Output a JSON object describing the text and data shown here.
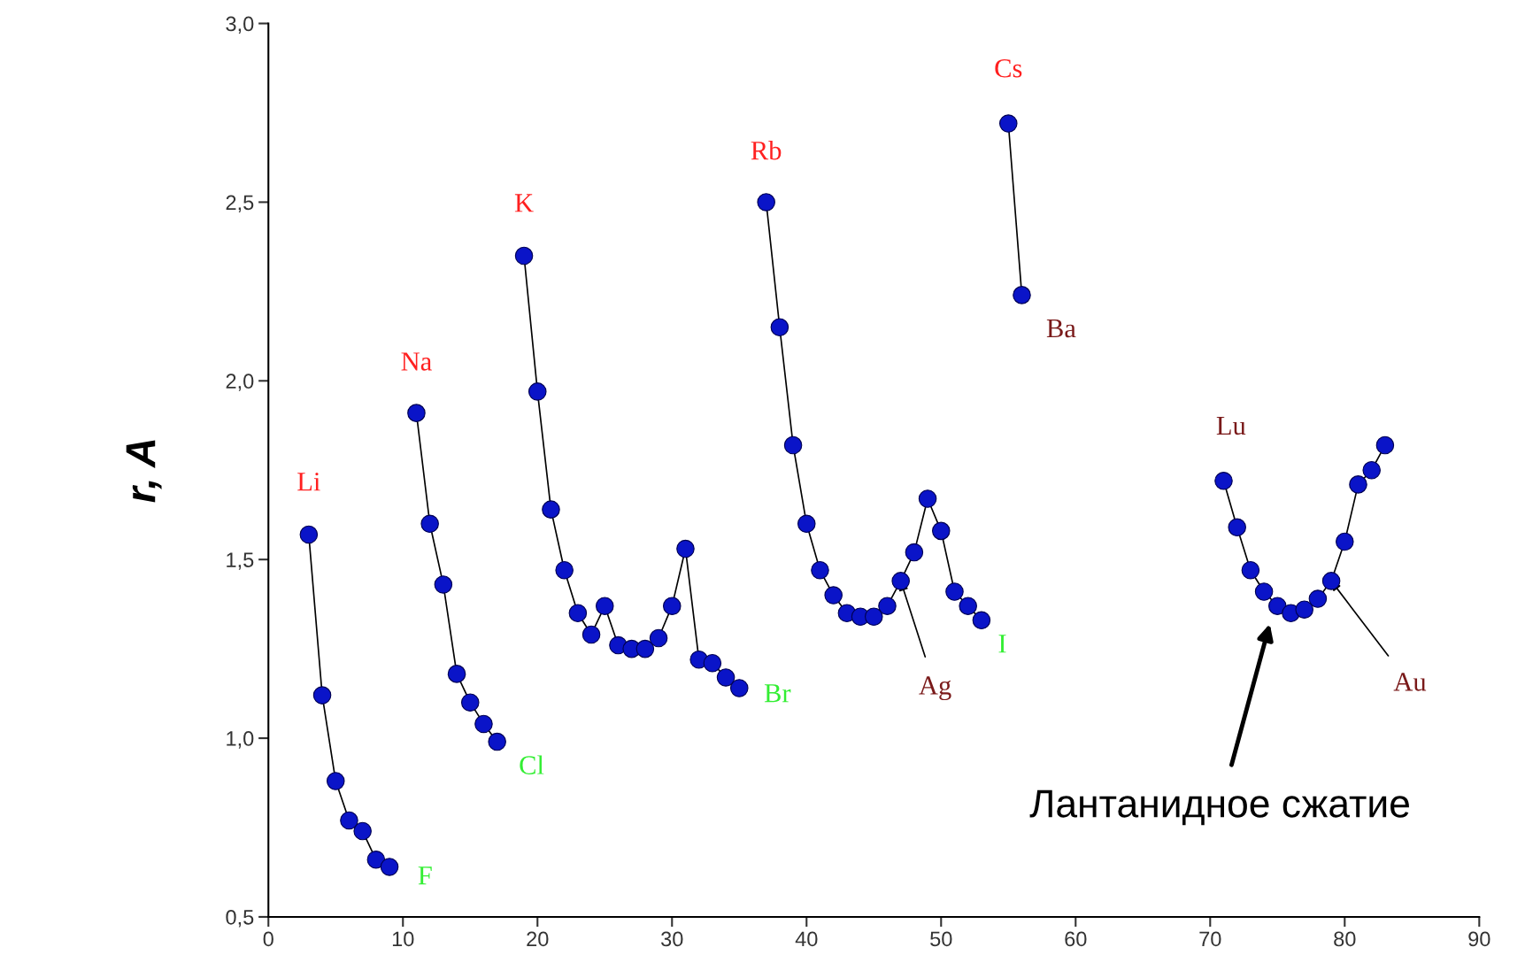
{
  "chart_data": {
    "type": "line",
    "ylabel": "r, A",
    "x": [
      3,
      4,
      5,
      6,
      7,
      8,
      9,
      10,
      11,
      12,
      13,
      14,
      15,
      16,
      17,
      18,
      19,
      20,
      21,
      22,
      23,
      24,
      25,
      26,
      27,
      28,
      29,
      30,
      31,
      32,
      33,
      34,
      35,
      36,
      37,
      38,
      39,
      40,
      41,
      42,
      43,
      44,
      45,
      46,
      47,
      48,
      49,
      50,
      51,
      52,
      53,
      54,
      55,
      56,
      57,
      71,
      72,
      73,
      74,
      75,
      76,
      77,
      78,
      79,
      80,
      81,
      82,
      83
    ],
    "series": [
      {
        "color": "#0a14c8",
        "values": [
          1.57,
          1.12,
          0.88,
          0.77,
          0.74,
          0.66,
          0.64,
          null,
          1.91,
          1.6,
          1.43,
          1.18,
          1.1,
          1.04,
          0.99,
          null,
          2.35,
          1.97,
          1.64,
          1.47,
          1.35,
          1.29,
          1.37,
          1.26,
          1.25,
          1.25,
          1.28,
          1.37,
          1.53,
          1.22,
          1.21,
          1.17,
          1.14,
          null,
          2.5,
          2.15,
          1.82,
          1.6,
          1.47,
          1.4,
          1.35,
          1.34,
          1.34,
          1.37,
          1.44,
          1.52,
          1.67,
          1.58,
          1.41,
          1.37,
          1.33,
          null,
          2.72,
          2.24,
          null,
          1.72,
          1.59,
          1.47,
          1.41,
          1.37,
          1.35,
          1.36,
          1.39,
          1.44,
          1.55,
          1.71,
          1.75,
          1.82
        ]
      }
    ],
    "marker": "circle",
    "line_style": "solid",
    "xlim": [
      0,
      90
    ],
    "xticks": [
      0,
      10,
      20,
      30,
      40,
      50,
      60,
      70,
      80,
      90
    ],
    "ylim": [
      0.5,
      3.0
    ],
    "yticks": [
      {
        "value": 0.5,
        "label": "0,5"
      },
      {
        "value": 1.0,
        "label": "1,0"
      },
      {
        "value": 1.5,
        "label": "1,5"
      },
      {
        "value": 2.0,
        "label": "2,0"
      },
      {
        "value": 2.5,
        "label": "2,5"
      },
      {
        "value": 3.0,
        "label": "3,0"
      }
    ],
    "grid": false,
    "annotations": [
      {
        "text": "Li",
        "x": 3,
        "y": 1.57
      },
      {
        "text": "Na",
        "x": 11,
        "y": 1.91
      },
      {
        "text": "K",
        "x": 19,
        "y": 2.35
      },
      {
        "text": "Rb",
        "x": 37,
        "y": 2.5
      },
      {
        "text": "Cs",
        "x": 55,
        "y": 2.72
      },
      {
        "text": "Ba",
        "x": 56,
        "y": 2.24
      },
      {
        "text": "F",
        "x": 9,
        "y": 0.64
      },
      {
        "text": "Cl",
        "x": 17,
        "y": 0.99
      },
      {
        "text": "Br",
        "x": 35,
        "y": 1.14
      },
      {
        "text": "I",
        "x": 53,
        "y": 1.33
      },
      {
        "text": "Lu",
        "x": 71,
        "y": 1.72
      },
      {
        "text": "Ag",
        "x": 47,
        "y": 1.44
      },
      {
        "text": "Au",
        "x": 79,
        "y": 1.44
      },
      "Лантанидное сжатие"
    ]
  }
}
